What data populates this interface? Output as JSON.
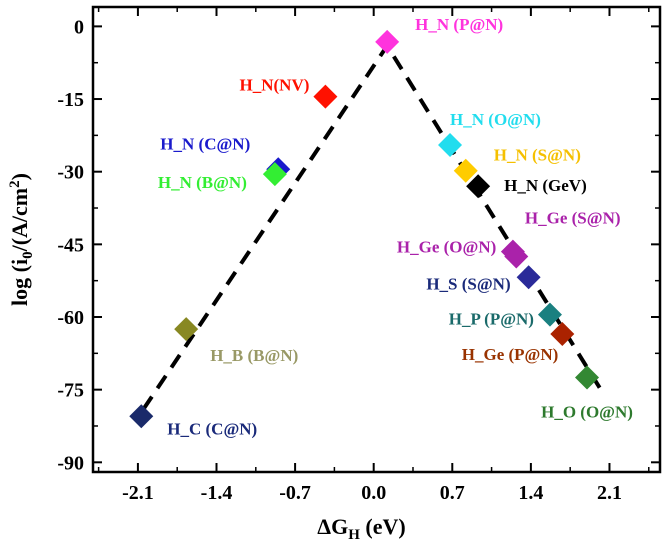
{
  "chart_data": {
    "type": "scatter",
    "title": "",
    "xlabel": "ΔG",
    "xlabel_sub": "H",
    "xlabel_unit": " (eV)",
    "ylabel_prefix": "log (i",
    "ylabel_sub": "0",
    "ylabel_mid": "/(A/cm",
    "ylabel_sup": "2",
    "ylabel_suffix": ")",
    "xlim": [
      -2.5,
      2.55
    ],
    "ylim": [
      -92,
      4
    ],
    "xticks": [
      -2.1,
      -1.4,
      -0.7,
      0.0,
      0.7,
      1.4,
      2.1
    ],
    "xtick_labels": [
      "-2.1",
      "-1.4",
      "-0.7",
      "0.0",
      "0.7",
      "1.4",
      "2.1"
    ],
    "yticks": [
      0,
      -15,
      -30,
      -45,
      -60,
      -75,
      -90
    ],
    "ytick_labels": [
      "0",
      "-15",
      "-30",
      "-45",
      "-60",
      "-75",
      "-90"
    ],
    "volcano_line": [
      [
        -2.05,
        -79
      ],
      [
        0.12,
        -4
      ],
      [
        2.05,
        -76
      ]
    ],
    "points": [
      {
        "label": "H_N (P@N)",
        "x": 0.12,
        "y": -3.2,
        "color": "#ff33dd",
        "label_color": "#ff33dd"
      },
      {
        "label": "H_N(NV)",
        "x": -0.43,
        "y": -14.5,
        "color": "#ff1100",
        "label_color": "#ff1100"
      },
      {
        "label": "H_N (O@N)",
        "x": 0.68,
        "y": -24.5,
        "color": "#22ddee",
        "label_color": "#22ddee"
      },
      {
        "label": "H_N (C@N)",
        "x": -0.85,
        "y": -29.5,
        "color": "#1a1acc",
        "label_color": "#1a1acc"
      },
      {
        "label": "H_N (B@N)",
        "x": -0.88,
        "y": -30.5,
        "color": "#33ee33",
        "label_color": "#33ee33"
      },
      {
        "label": "H_N (S@N)",
        "x": 0.82,
        "y": -29.8,
        "color": "#ffcc00",
        "label_color": "#f5c000"
      },
      {
        "label": "H_N (GeV)",
        "x": 0.93,
        "y": -33.0,
        "color": "#000000",
        "label_color": "#000000"
      },
      {
        "label": "H_Ge (S@N)",
        "x": 1.24,
        "y": -46.5,
        "color": "#aa22aa",
        "label_color": "#aa22aa"
      },
      {
        "label": "H_Ge (O@N)",
        "x": 1.27,
        "y": -47.5,
        "color": "#aa22aa",
        "label_color": "#aa22aa"
      },
      {
        "label": "H_S (S@N)",
        "x": 1.38,
        "y": -51.8,
        "color": "#2a2a99",
        "label_color": "#1a2a7a"
      },
      {
        "label": "H_P (P@N)",
        "x": 1.57,
        "y": -59.5,
        "color": "#1a8080",
        "label_color": "#1a6a6a"
      },
      {
        "label": "H_Ge (P@N)",
        "x": 1.68,
        "y": -63.5,
        "color": "#aa2200",
        "label_color": "#993300"
      },
      {
        "label": "H_O (O@N)",
        "x": 1.9,
        "y": -72.5,
        "color": "#338833",
        "label_color": "#2e7a2e"
      },
      {
        "label": "H_B (B@N)",
        "x": -1.67,
        "y": -62.5,
        "color": "#888822",
        "label_color": "#999966"
      },
      {
        "label": "H_C (C@N)",
        "x": -2.07,
        "y": -80.5,
        "color": "#1a2a6a",
        "label_color": "#1a2a7a"
      }
    ]
  }
}
